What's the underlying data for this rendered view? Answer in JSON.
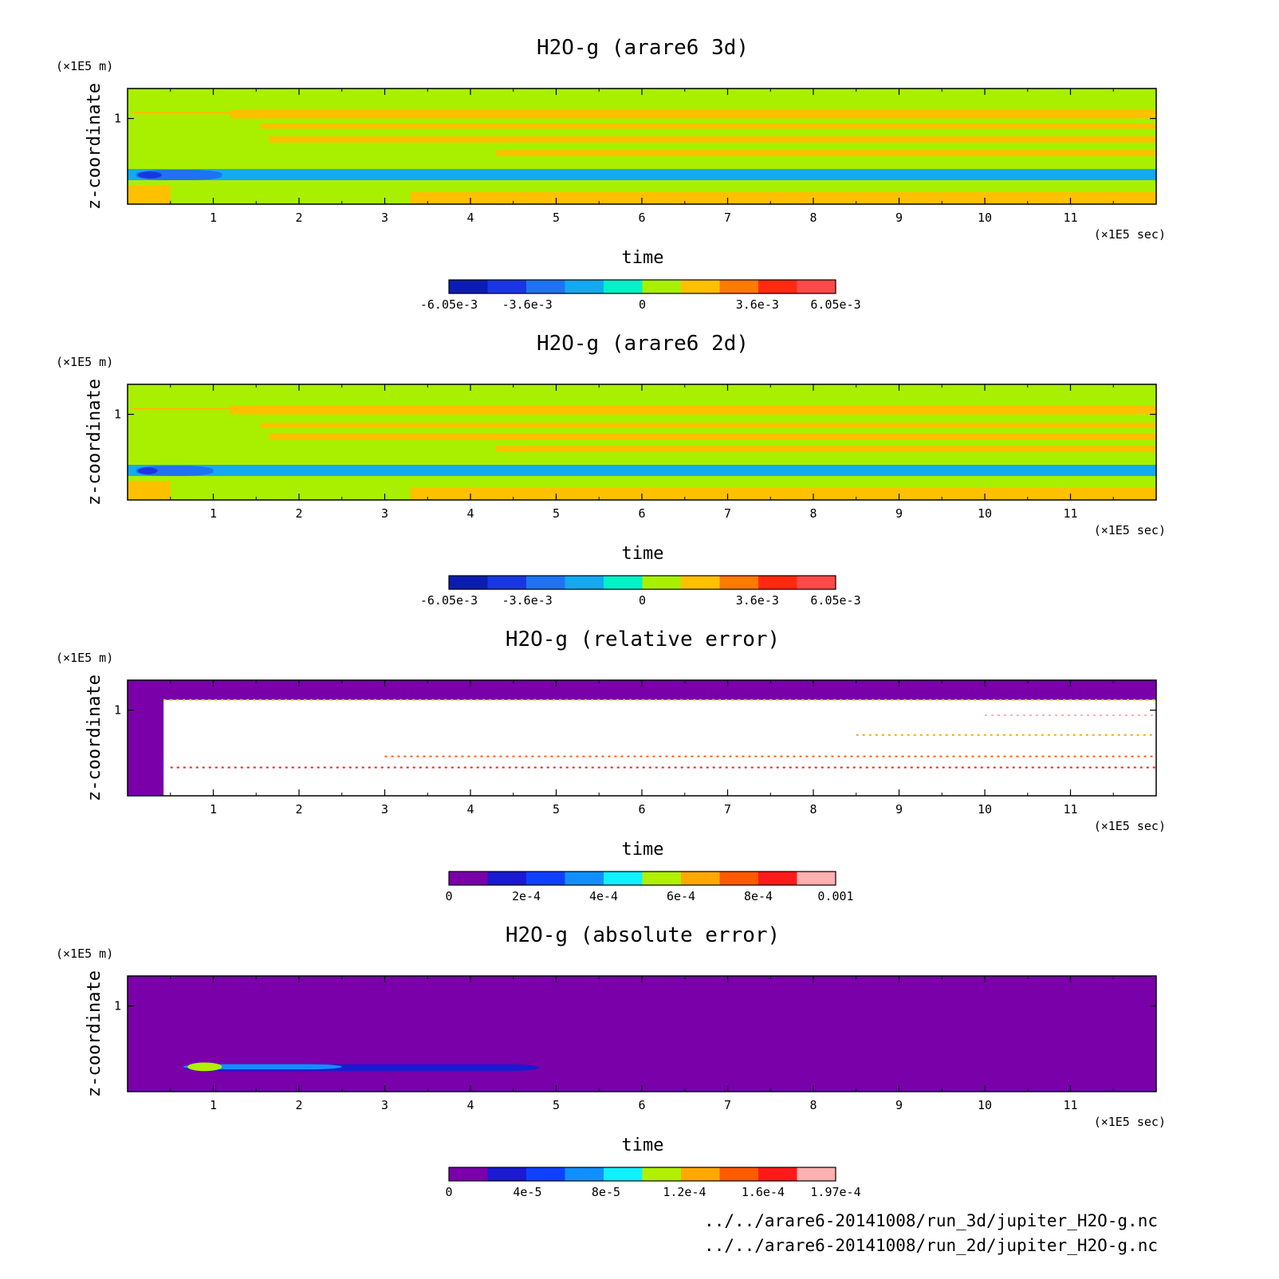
{
  "colors": {
    "background": "#ffffff",
    "axis": "#000000",
    "field_palette": [
      "#0a1db0",
      "#1a36e0",
      "#1f72f2",
      "#14a9f0",
      "#00f2c8",
      "#a8f000",
      "#ffc000",
      "#ff7a00",
      "#ff2a10",
      "#ff4a4a"
    ],
    "error_palette": [
      "#7a00aa",
      "#1a1ad0",
      "#1040ff",
      "#1090ff",
      "#10f0ff",
      "#b0f000",
      "#ffa800",
      "#ff5a00",
      "#ff1a1a",
      "#ffb0b0"
    ]
  },
  "chart_data": [
    {
      "type": "heatmap",
      "title": "H2O-g (arare6 3d)",
      "xlabel": "time",
      "x_unit": "(×1E5 sec)",
      "ylabel": "z-coordinate",
      "y_unit": "(×1E5 m)",
      "xlim": [
        0,
        12
      ],
      "ylim": [
        0,
        1.35
      ],
      "xticks": [
        "1",
        "2",
        "3",
        "4",
        "5",
        "6",
        "7",
        "8",
        "9",
        "10",
        "11"
      ],
      "yticks": [
        "1"
      ],
      "colorbar": {
        "range": [
          -0.00605,
          0.00605
        ],
        "tick_labels": [
          "-6.05e-3",
          "-3.6e-3",
          "0",
          "3.6e-3",
          "6.05e-3"
        ],
        "tick_values": [
          -0.00605,
          -0.0036,
          0,
          0.0036,
          0.00605
        ],
        "levels": 10,
        "palette": "field"
      },
      "background_value": 0,
      "features": [
        {
          "kind": "band",
          "t": [
            0.0,
            12.0
          ],
          "z": [
            0.28,
            0.41
          ],
          "value": -0.0018
        },
        {
          "kind": "band",
          "t": [
            0.0,
            0.5
          ],
          "z": [
            0.0,
            0.22
          ],
          "value": 0.0018
        },
        {
          "kind": "band",
          "t": [
            3.3,
            12.0
          ],
          "z": [
            0.0,
            0.14
          ],
          "value": 0.0018
        },
        {
          "kind": "band",
          "t": [
            0.05,
            1.2
          ],
          "z": [
            1.05,
            1.08
          ],
          "value": 0.0018
        },
        {
          "kind": "band",
          "t": [
            1.2,
            12.0
          ],
          "z": [
            1.0,
            1.1
          ],
          "value": 0.0018
        },
        {
          "kind": "band",
          "t": [
            1.55,
            12.0
          ],
          "z": [
            0.88,
            0.94
          ],
          "value": 0.0018
        },
        {
          "kind": "band",
          "t": [
            1.65,
            12.0
          ],
          "z": [
            0.72,
            0.79
          ],
          "value": 0.0018
        },
        {
          "kind": "band",
          "t": [
            4.3,
            12.0
          ],
          "z": [
            0.56,
            0.63
          ],
          "value": 0.0018
        },
        {
          "kind": "blob",
          "t": [
            0.1,
            1.1
          ],
          "z": [
            0.28,
            0.4
          ],
          "value": -0.0036
        },
        {
          "kind": "blob",
          "t": [
            0.12,
            0.4
          ],
          "z": [
            0.3,
            0.38
          ],
          "value": -0.0048
        }
      ]
    },
    {
      "type": "heatmap",
      "title": "H2O-g (arare6 2d)",
      "xlabel": "time",
      "x_unit": "(×1E5 sec)",
      "ylabel": "z-coordinate",
      "y_unit": "(×1E5 m)",
      "xlim": [
        0,
        12
      ],
      "ylim": [
        0,
        1.35
      ],
      "xticks": [
        "1",
        "2",
        "3",
        "4",
        "5",
        "6",
        "7",
        "8",
        "9",
        "10",
        "11"
      ],
      "yticks": [
        "1"
      ],
      "colorbar": {
        "range": [
          -0.00605,
          0.00605
        ],
        "tick_labels": [
          "-6.05e-3",
          "-3.6e-3",
          "0",
          "3.6e-3",
          "6.05e-3"
        ],
        "tick_values": [
          -0.00605,
          -0.0036,
          0,
          0.0036,
          0.00605
        ],
        "levels": 10,
        "palette": "field"
      },
      "background_value": 0,
      "features": [
        {
          "kind": "band",
          "t": [
            0.0,
            12.0
          ],
          "z": [
            0.28,
            0.41
          ],
          "value": -0.0018
        },
        {
          "kind": "band",
          "t": [
            0.0,
            0.5
          ],
          "z": [
            0.0,
            0.22
          ],
          "value": 0.0018
        },
        {
          "kind": "band",
          "t": [
            3.3,
            12.0
          ],
          "z": [
            0.0,
            0.14
          ],
          "value": 0.0018
        },
        {
          "kind": "band",
          "t": [
            0.05,
            1.2
          ],
          "z": [
            1.05,
            1.08
          ],
          "value": 0.0018
        },
        {
          "kind": "band",
          "t": [
            1.2,
            12.0
          ],
          "z": [
            1.0,
            1.1
          ],
          "value": 0.0018
        },
        {
          "kind": "band",
          "t": [
            1.55,
            12.0
          ],
          "z": [
            0.84,
            0.9
          ],
          "value": 0.0018
        },
        {
          "kind": "band",
          "t": [
            1.65,
            12.0
          ],
          "z": [
            0.7,
            0.78
          ],
          "value": 0.0018
        },
        {
          "kind": "band",
          "t": [
            4.3,
            12.0
          ],
          "z": [
            0.56,
            0.63
          ],
          "value": 0.0018
        },
        {
          "kind": "blob",
          "t": [
            0.1,
            1.0
          ],
          "z": [
            0.28,
            0.4
          ],
          "value": -0.0036
        },
        {
          "kind": "blob",
          "t": [
            0.12,
            0.35
          ],
          "z": [
            0.3,
            0.38
          ],
          "value": -0.0048
        }
      ]
    },
    {
      "type": "heatmap",
      "title": "H2O-g (relative error)",
      "xlabel": "time",
      "x_unit": "(×1E5 sec)",
      "ylabel": "z-coordinate",
      "y_unit": "(×1E5 m)",
      "xlim": [
        0,
        12
      ],
      "ylim": [
        0,
        1.35
      ],
      "xticks": [
        "1",
        "2",
        "3",
        "4",
        "5",
        "6",
        "7",
        "8",
        "9",
        "10",
        "11"
      ],
      "yticks": [
        "1"
      ],
      "colorbar": {
        "range": [
          0,
          0.001
        ],
        "tick_labels": [
          "0",
          "2e-4",
          "4e-4",
          "6e-4",
          "8e-4",
          "0.001"
        ],
        "tick_values": [
          0,
          0.0002,
          0.0004,
          0.0006,
          0.0008,
          0.001
        ],
        "levels": 10,
        "palette": "error"
      },
      "background_value": 0,
      "features": [
        {
          "kind": "blank",
          "t": [
            0.42,
            12.0
          ],
          "z": [
            0.0,
            1.12
          ]
        },
        {
          "kind": "streak",
          "t": [
            0.42,
            12.0
          ],
          "z": 1.12,
          "value": 0.0005
        },
        {
          "kind": "streak",
          "t": [
            0.5,
            12.0
          ],
          "z": 0.33,
          "value": 0.0008
        },
        {
          "kind": "streak",
          "t": [
            3.0,
            12.0
          ],
          "z": 0.46,
          "value": 0.0007
        },
        {
          "kind": "streak",
          "t": [
            8.5,
            12.0
          ],
          "z": 0.71,
          "value": 0.0006
        },
        {
          "kind": "streak",
          "t": [
            10.0,
            12.0
          ],
          "z": 0.94,
          "value": 0.0009
        }
      ]
    },
    {
      "type": "heatmap",
      "title": "H2O-g (absolute error)",
      "xlabel": "time",
      "x_unit": "(×1E5 sec)",
      "ylabel": "z-coordinate",
      "y_unit": "(×1E5 m)",
      "xlim": [
        0,
        12
      ],
      "ylim": [
        0,
        1.35
      ],
      "xticks": [
        "1",
        "2",
        "3",
        "4",
        "5",
        "6",
        "7",
        "8",
        "9",
        "10",
        "11"
      ],
      "yticks": [
        "1"
      ],
      "colorbar": {
        "range": [
          0,
          0.000197
        ],
        "tick_labels": [
          "0",
          "4e-5",
          "8e-5",
          "1.2e-4",
          "1.6e-4",
          "1.97e-4"
        ],
        "tick_values": [
          0,
          4e-05,
          8e-05,
          0.00012,
          0.00016,
          0.000197
        ],
        "levels": 10,
        "palette": "error"
      },
      "background_value": 0,
      "features": [
        {
          "kind": "blob",
          "t": [
            0.65,
            4.8
          ],
          "z": [
            0.24,
            0.32
          ],
          "value": 3e-05
        },
        {
          "kind": "blob",
          "t": [
            0.65,
            2.5
          ],
          "z": [
            0.26,
            0.32
          ],
          "value": 6e-05
        },
        {
          "kind": "blob",
          "t": [
            0.7,
            1.1
          ],
          "z": [
            0.24,
            0.34
          ],
          "value": 0.0001
        }
      ]
    }
  ],
  "footer": {
    "line1": "../../arare6-20141008/run_3d/jupiter_H2O-g.nc",
    "line2": "../../arare6-20141008/run_2d/jupiter_H2O-g.nc"
  }
}
